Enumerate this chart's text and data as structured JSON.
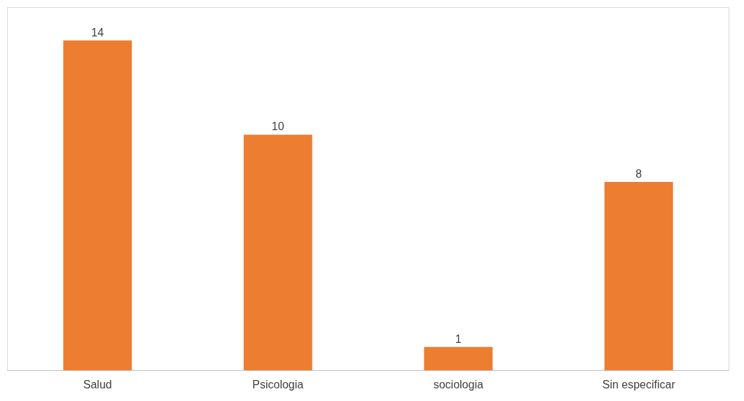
{
  "chart_data": {
    "type": "bar",
    "categories": [
      "Salud",
      "Psicologia",
      "sociologia",
      "Sin especificar"
    ],
    "values": [
      14,
      10,
      1,
      8
    ],
    "color": "#ed7d31",
    "data_labels": true,
    "grid": false,
    "tick_labels": "x"
  }
}
